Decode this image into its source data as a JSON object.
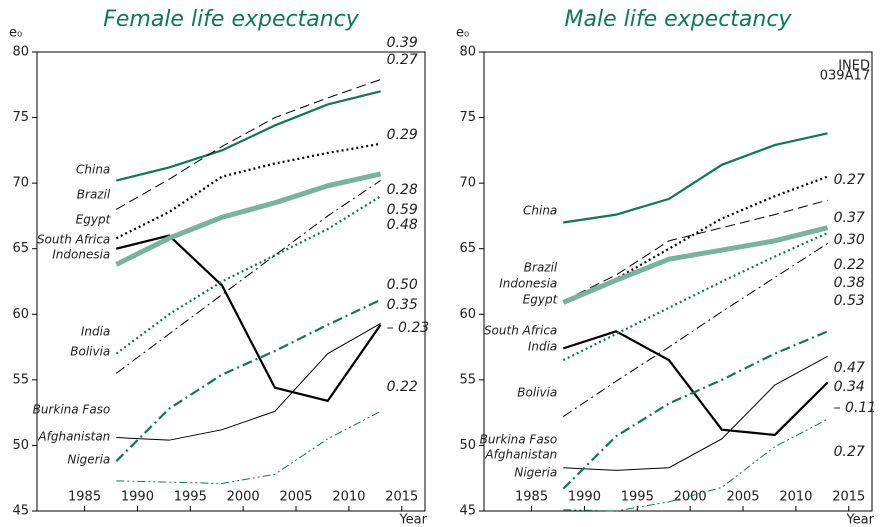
{
  "chart_data": [
    {
      "type": "line",
      "title": "Female life expectancy",
      "y_label": "e₀",
      "x_label": "Year",
      "x": [
        1988,
        1993,
        1998,
        2003,
        2008,
        2013
      ],
      "xlim": [
        1980.5,
        2017.2
      ],
      "xticks": [
        1985,
        1990,
        1995,
        2000,
        2005,
        2010,
        2015
      ],
      "ylim": [
        45,
        80
      ],
      "yticks": [
        45,
        50,
        55,
        60,
        65,
        70,
        75,
        80
      ],
      "series": [
        {
          "name": "China",
          "color": "#0e7a55",
          "style": "solid",
          "thick": true,
          "values": [
            70.2,
            71.2,
            72.5,
            74.4,
            76.0,
            77.0
          ],
          "end_label": "0.27"
        },
        {
          "name": "Brazil",
          "color": "#000000",
          "style": "dashed",
          "thick": false,
          "values": [
            68.0,
            70.3,
            72.8,
            75.0,
            76.5,
            77.9
          ],
          "end_label": "0.39"
        },
        {
          "name": "Egypt",
          "color": "#000000",
          "style": "dotted",
          "thick": true,
          "values": [
            65.8,
            67.8,
            70.5,
            71.5,
            72.3,
            73.0
          ],
          "end_label": "0.29"
        },
        {
          "name": "South Africa",
          "color": "#000000",
          "style": "solid",
          "thick": true,
          "values": [
            65.0,
            66.0,
            62.2,
            54.4,
            53.4,
            59.2
          ],
          "end_label": "– 0.23"
        },
        {
          "name": "Indonesia",
          "color": "#76b3a0",
          "style": "solid",
          "thick": true,
          "heavy": true,
          "values": [
            63.8,
            65.8,
            67.4,
            68.5,
            69.8,
            70.7
          ],
          "end_label": "0.28"
        },
        {
          "name": "India",
          "color": "#0e7a55",
          "style": "dotted",
          "thick": true,
          "values": [
            57.0,
            60.0,
            62.5,
            64.5,
            66.5,
            69.0
          ],
          "end_label": "0.48"
        },
        {
          "name": "Bolivia",
          "color": "#000000",
          "style": "dashdot",
          "thick": false,
          "values": [
            55.5,
            58.5,
            61.5,
            64.5,
            67.5,
            70.2
          ],
          "end_label": "0.59"
        },
        {
          "name": "Burkina Faso",
          "color": "#000000",
          "style": "solid",
          "thick": false,
          "values": [
            50.6,
            50.4,
            51.2,
            52.6,
            57.0,
            59.3
          ],
          "end_label": "0.35"
        },
        {
          "name": "Afghanistan",
          "color": "#0e7a55",
          "style": "dashdot",
          "thick": true,
          "values": [
            48.8,
            52.8,
            55.4,
            57.2,
            59.2,
            61.1
          ],
          "end_label": "0.50"
        },
        {
          "name": "Nigeria",
          "color": "#0e7a55",
          "style": "dashdotdot",
          "thick": false,
          "values": [
            47.3,
            47.2,
            47.1,
            47.8,
            50.5,
            52.6
          ],
          "end_label": "0.22"
        }
      ]
    },
    {
      "type": "line",
      "title": "Male life expectancy",
      "y_label": "e₀",
      "x_label": "Year",
      "note": [
        "INED",
        "039A17"
      ],
      "x": [
        1988,
        1993,
        1998,
        2003,
        2008,
        2013
      ],
      "xlim": [
        1980.5,
        2017.2
      ],
      "xticks": [
        1985,
        1990,
        1995,
        2000,
        2005,
        2010,
        2015
      ],
      "ylim": [
        45,
        80
      ],
      "yticks": [
        45,
        50,
        55,
        60,
        65,
        70,
        75,
        80
      ],
      "series": [
        {
          "name": "China",
          "color": "#0e7a55",
          "style": "solid",
          "thick": true,
          "values": [
            67.0,
            67.6,
            68.8,
            71.4,
            72.9,
            73.8
          ],
          "end_label": "0.27"
        },
        {
          "name": "Brazil",
          "color": "#000000",
          "style": "dashed",
          "thick": false,
          "values": [
            61.0,
            63.0,
            65.6,
            66.6,
            67.6,
            68.7
          ],
          "end_label": "0.30"
        },
        {
          "name": "Egypt",
          "color": "#000000",
          "style": "dotted",
          "thick": true,
          "values": [
            61.0,
            62.7,
            65.0,
            67.3,
            69.0,
            70.5
          ],
          "end_label": "0.37"
        },
        {
          "name": "South Africa",
          "color": "#000000",
          "style": "solid",
          "thick": true,
          "values": [
            57.4,
            58.7,
            56.5,
            51.2,
            50.8,
            54.8
          ],
          "end_label": "– 0.11"
        },
        {
          "name": "Indonesia",
          "color": "#76b3a0",
          "style": "solid",
          "thick": true,
          "heavy": true,
          "values": [
            60.9,
            62.6,
            64.2,
            64.9,
            65.6,
            66.6
          ],
          "end_label": "0.22"
        },
        {
          "name": "India",
          "color": "#0e7a55",
          "style": "dotted",
          "thick": true,
          "values": [
            56.5,
            58.5,
            60.5,
            62.5,
            64.4,
            66.2
          ],
          "end_label": "0.38"
        },
        {
          "name": "Bolivia",
          "color": "#000000",
          "style": "dashdot",
          "thick": false,
          "values": [
            52.2,
            54.9,
            57.5,
            60.2,
            62.8,
            65.4
          ],
          "end_label": "0.53"
        },
        {
          "name": "Burkina Faso",
          "color": "#000000",
          "style": "solid",
          "thick": false,
          "values": [
            48.3,
            48.1,
            48.3,
            50.5,
            54.6,
            56.8
          ],
          "end_label": "0.34"
        },
        {
          "name": "Afghanistan",
          "color": "#0e7a55",
          "style": "dashdot",
          "thick": true,
          "values": [
            46.7,
            50.7,
            53.2,
            55.0,
            57.0,
            58.7
          ],
          "end_label": "0.47"
        },
        {
          "name": "Nigeria",
          "color": "#0e7a55",
          "style": "dashdotdot",
          "thick": false,
          "values": [
            45.1,
            45.0,
            45.7,
            46.8,
            49.9,
            52.0
          ],
          "end_label": "0.27"
        }
      ]
    }
  ]
}
